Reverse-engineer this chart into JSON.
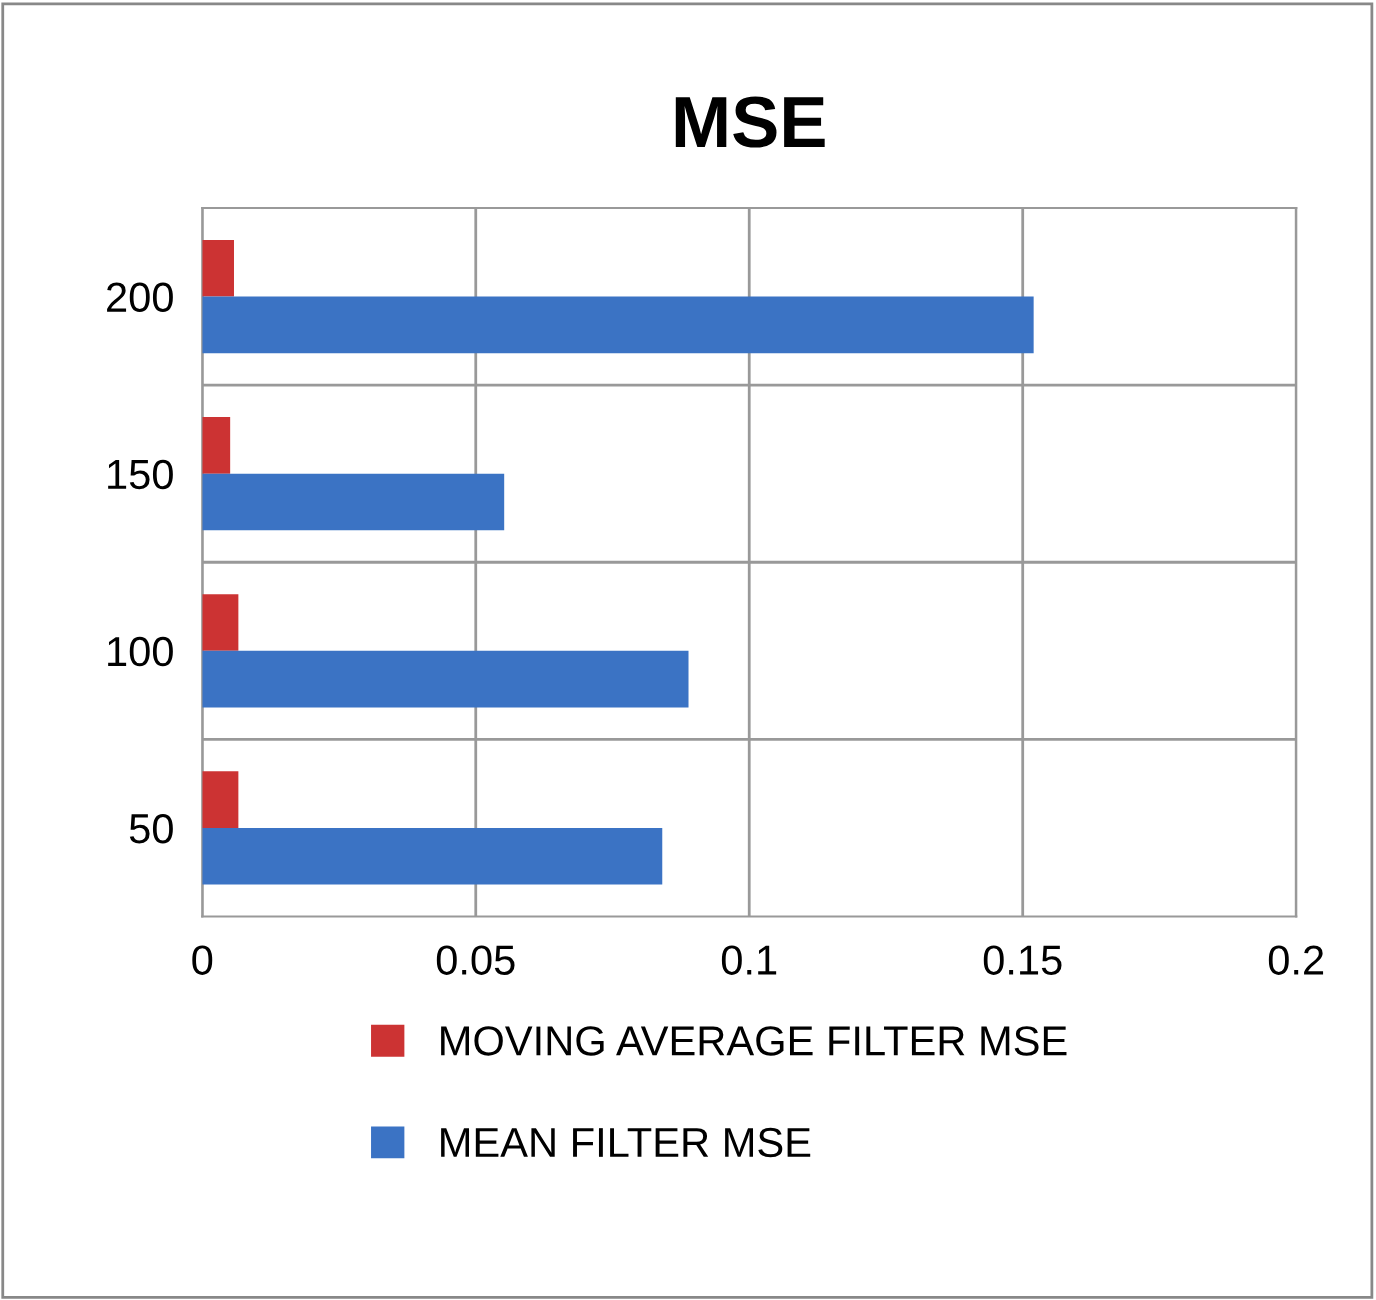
{
  "chart_data": {
    "type": "bar",
    "orientation": "horizontal",
    "title": "MSE",
    "categories": [
      "200",
      "150",
      "100",
      "50"
    ],
    "series": [
      {
        "name": "MOVING AVERAGE FILTER MSE",
        "color": "#cc3333",
        "values": [
          0.0058,
          0.0051,
          0.0066,
          0.0066
        ]
      },
      {
        "name": "MEAN FILTER MSE",
        "color": "#3b73c4",
        "values": [
          0.152,
          0.0552,
          0.0889,
          0.0841
        ]
      }
    ],
    "xlim": [
      0,
      0.2
    ],
    "xticks": [
      0,
      0.05,
      0.1,
      0.15,
      0.2
    ],
    "grid": true,
    "legend": "bottom"
  }
}
